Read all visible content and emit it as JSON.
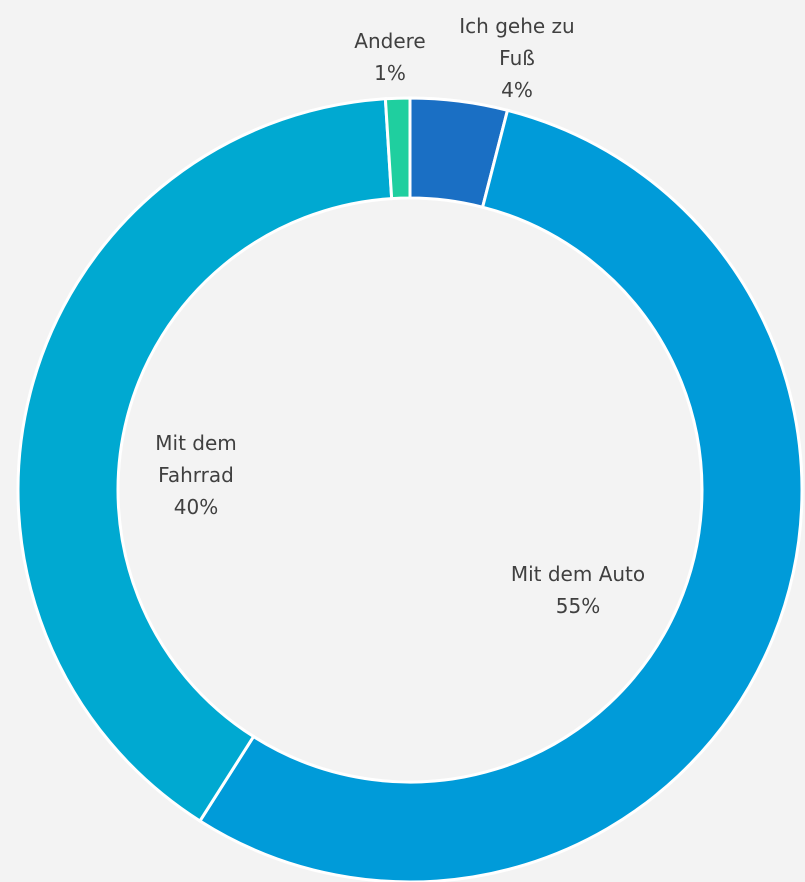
{
  "chart_data": {
    "type": "donut",
    "categories": [
      "Ich gehe zu Fuß",
      "Mit dem Auto",
      "Mit dem Fahrrad",
      "Andere"
    ],
    "values": [
      4,
      55,
      40,
      1
    ],
    "value_labels": [
      "4%",
      "55%",
      "40%",
      "1%"
    ],
    "colors": [
      "#1a6fc4",
      "#009bd9",
      "#00a9d1",
      "#1fcf9f"
    ]
  }
}
